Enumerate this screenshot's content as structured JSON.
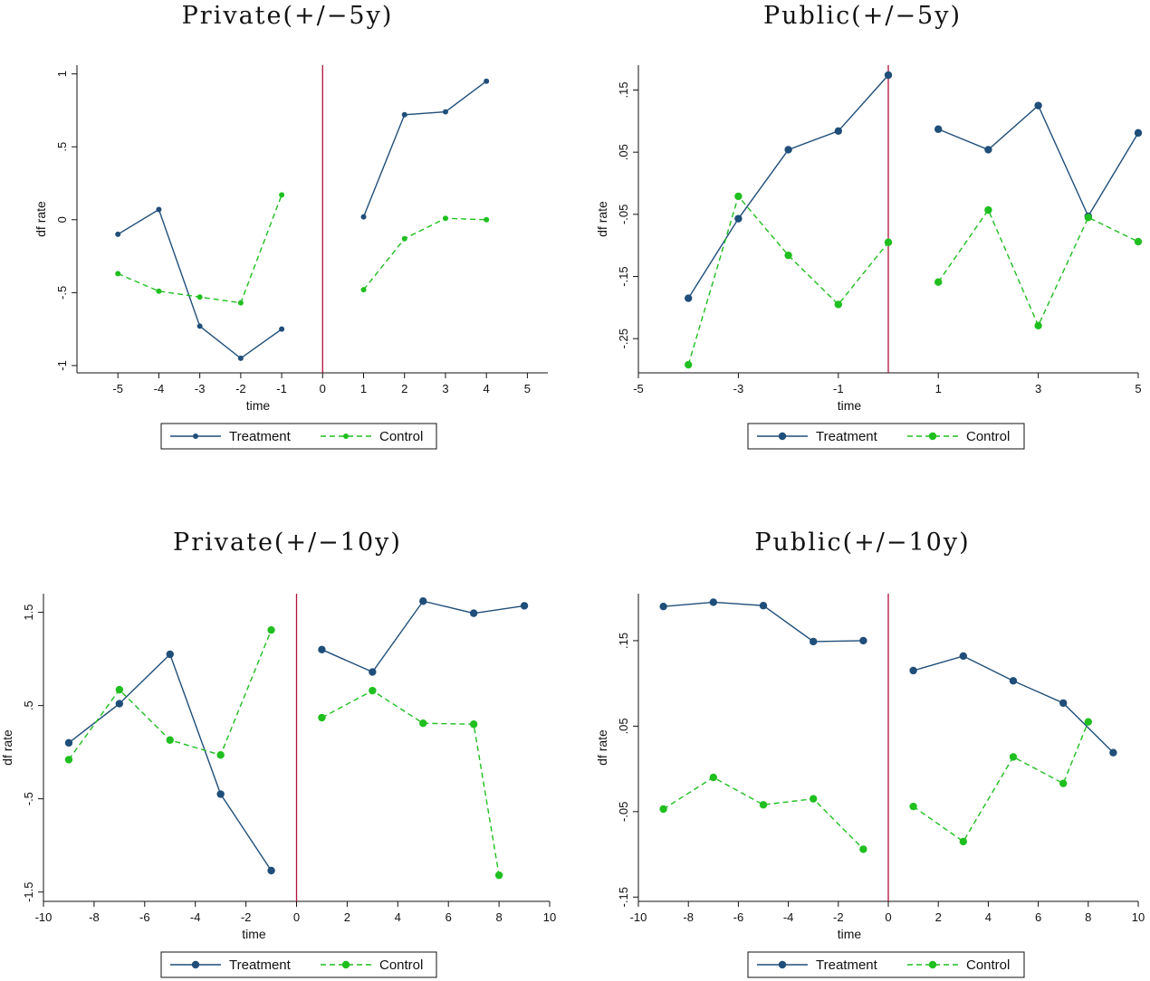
{
  "colors": {
    "treatment": "#1f4e79",
    "control": "#1fbf1f",
    "vline": "#b0123c"
  },
  "chart_data": [
    {
      "type": "line",
      "title": "Private(+/−5y)",
      "xlabel": "time",
      "ylabel": "df rate",
      "xlim": [
        -6,
        5.5
      ],
      "ylim": [
        -1.05,
        1.06
      ],
      "xticks": [
        -5,
        -4,
        -3,
        -2,
        -1,
        0,
        1,
        2,
        3,
        4,
        5
      ],
      "xtick_labels": [
        "-5",
        "-4",
        "-3",
        "-2",
        "-1",
        "0",
        "1",
        "2",
        "3",
        "4",
        "5"
      ],
      "yticks": [
        -1,
        -0.5,
        0,
        0.5,
        1
      ],
      "ytick_labels": [
        "-1",
        "-.5",
        "0",
        ".5",
        "1"
      ],
      "vline": 0,
      "legend": [
        "Treatment",
        "Control"
      ],
      "series": [
        {
          "name": "Treatment",
          "segments": [
            {
              "x": [
                -5,
                -4,
                -3,
                -2,
                -1
              ],
              "y": [
                -0.1,
                0.07,
                -0.73,
                -0.95,
                -0.75
              ]
            },
            {
              "x": [
                1,
                2,
                3,
                4
              ],
              "y": [
                0.02,
                0.72,
                0.74,
                0.95
              ]
            }
          ]
        },
        {
          "name": "Control",
          "segments": [
            {
              "x": [
                -5,
                -4,
                -3,
                -2,
                -1
              ],
              "y": [
                -0.37,
                -0.49,
                -0.53,
                -0.57,
                0.17
              ]
            },
            {
              "x": [
                1,
                2,
                3,
                4
              ],
              "y": [
                -0.48,
                -0.13,
                0.01,
                0.0
              ]
            }
          ]
        }
      ]
    },
    {
      "type": "line",
      "title": "Public(+/−5y)",
      "xlabel": "time",
      "ylabel": "df rate",
      "xlim": [
        -5,
        5
      ],
      "ylim": [
        -0.305,
        0.19
      ],
      "xticks": [
        -5,
        -3,
        -1,
        1,
        3,
        5
      ],
      "xtick_labels": [
        "-5",
        "-3",
        "-1",
        "1",
        "3",
        "5"
      ],
      "yticks": [
        -0.25,
        -0.15,
        -0.05,
        0.05,
        0.15
      ],
      "ytick_labels": [
        "-.25",
        "-.15",
        "-.05",
        ".05",
        ".15"
      ],
      "vline": 0,
      "legend": [
        "Treatment",
        "Control"
      ],
      "series": [
        {
          "name": "Treatment",
          "segments": [
            {
              "x": [
                -4,
                -3,
                -2,
                -1,
                0
              ],
              "y": [
                -0.185,
                -0.057,
                0.054,
                0.084,
                0.174
              ]
            },
            {
              "x": [
                1,
                2,
                3,
                4,
                5
              ],
              "y": [
                0.087,
                0.054,
                0.125,
                -0.053,
                0.081
              ]
            }
          ]
        },
        {
          "name": "Control",
          "segments": [
            {
              "x": [
                -4,
                -3,
                -2,
                -1,
                0
              ],
              "y": [
                -0.292,
                -0.021,
                -0.116,
                -0.195,
                -0.095
              ]
            },
            {
              "x": [
                1,
                2,
                3,
                4,
                5
              ],
              "y": [
                -0.159,
                -0.043,
                -0.229,
                -0.055,
                -0.094
              ]
            }
          ]
        }
      ]
    },
    {
      "type": "line",
      "title": "Private(+/−10y)",
      "xlabel": "time",
      "ylabel": "df rate",
      "xlim": [
        -10,
        10
      ],
      "ylim": [
        -1.6,
        1.7
      ],
      "xticks": [
        -10,
        -8,
        -6,
        -4,
        -2,
        0,
        2,
        4,
        6,
        8,
        10
      ],
      "xtick_labels": [
        "-10",
        "-8",
        "-6",
        "-4",
        "-2",
        "0",
        "2",
        "4",
        "6",
        "8",
        "10"
      ],
      "yticks": [
        -1.5,
        -0.5,
        0.5,
        1.5
      ],
      "ytick_labels": [
        "-1.5",
        "-.5",
        ".5",
        "1.5"
      ],
      "vline": 0,
      "legend": [
        "Treatment",
        "Control"
      ],
      "series": [
        {
          "name": "Treatment",
          "segments": [
            {
              "x": [
                -9,
                -7,
                -5,
                -3,
                -1
              ],
              "y": [
                0.1,
                0.52,
                1.05,
                -0.45,
                -1.27
              ]
            },
            {
              "x": [
                1,
                3,
                5,
                7,
                9
              ],
              "y": [
                1.1,
                0.86,
                1.62,
                1.49,
                1.57
              ]
            }
          ]
        },
        {
          "name": "Control",
          "segments": [
            {
              "x": [
                -9,
                -7,
                -5,
                -3,
                -1
              ],
              "y": [
                -0.08,
                0.67,
                0.13,
                -0.03,
                1.31
              ]
            },
            {
              "x": [
                1,
                3,
                5,
                7,
                8
              ],
              "y": [
                0.37,
                0.66,
                0.31,
                0.3,
                -1.32
              ]
            }
          ]
        }
      ]
    },
    {
      "type": "line",
      "title": "Public(+/−10y)",
      "xlabel": "time",
      "ylabel": "df rate",
      "xlim": [
        -10,
        10
      ],
      "ylim": [
        -0.155,
        0.205
      ],
      "xticks": [
        -10,
        -8,
        -6,
        -4,
        -2,
        0,
        2,
        4,
        6,
        8,
        10
      ],
      "xtick_labels": [
        "-10",
        "-8",
        "-6",
        "-4",
        "-2",
        "0",
        "2",
        "4",
        "6",
        "8",
        "10"
      ],
      "yticks": [
        -0.15,
        -0.05,
        0.05,
        0.15
      ],
      "ytick_labels": [
        "-.15",
        "-.05",
        ".05",
        ".15"
      ],
      "vline": 0,
      "legend": [
        "Treatment",
        "Control"
      ],
      "series": [
        {
          "name": "Treatment",
          "segments": [
            {
              "x": [
                -9,
                -7,
                -5,
                -3,
                -1
              ],
              "y": [
                0.19,
                0.195,
                0.191,
                0.149,
                0.15
              ]
            },
            {
              "x": [
                1,
                3,
                5,
                7,
                9
              ],
              "y": [
                0.115,
                0.132,
                0.103,
                0.077,
                0.019
              ]
            }
          ]
        },
        {
          "name": "Control",
          "segments": [
            {
              "x": [
                -9,
                -7,
                -5,
                -3,
                -1
              ],
              "y": [
                -0.047,
                -0.01,
                -0.042,
                -0.035,
                -0.094
              ]
            },
            {
              "x": [
                1,
                3,
                5,
                7,
                8
              ],
              "y": [
                -0.044,
                -0.085,
                0.014,
                -0.017,
                0.055
              ]
            }
          ]
        }
      ]
    }
  ]
}
